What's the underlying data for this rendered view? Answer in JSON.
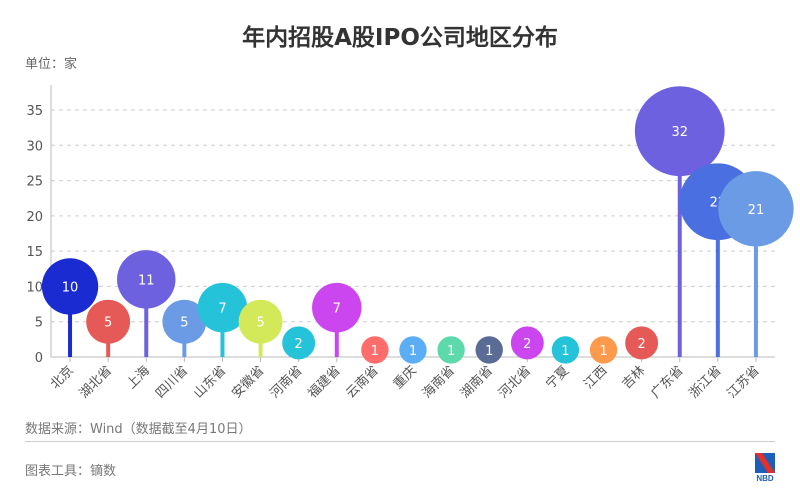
{
  "title": "年内招股A股IPO公司地区分布",
  "unit": "单位：家",
  "source": "数据来源：Wind（数据截至4月10日）",
  "tool": "图表工具：镝数",
  "logo_text": "NBD",
  "chart_data": {
    "type": "bubble-lollipop",
    "title": "年内招股A股IPO公司地区分布",
    "ylabel": "单位：家",
    "ylim": [
      0,
      35
    ],
    "yticks": [
      0,
      5,
      10,
      15,
      20,
      25,
      30,
      35
    ],
    "grid": true,
    "categories": [
      "北京",
      "湖北省",
      "上海",
      "四川省",
      "山东省",
      "安徽省",
      "河南省",
      "福建省",
      "云南省",
      "重庆",
      "海南省",
      "湖南省",
      "河北省",
      "宁夏",
      "江西",
      "吉林",
      "广东省",
      "浙江省",
      "江苏省"
    ],
    "values": [
      10,
      5,
      11,
      5,
      7,
      5,
      2,
      7,
      1,
      1,
      1,
      1,
      2,
      1,
      1,
      2,
      32,
      22,
      21
    ],
    "colors": [
      "#1a2bd1",
      "#e55a56",
      "#6e61e0",
      "#6c9be6",
      "#25c3da",
      "#d4e95a",
      "#25c3da",
      "#cc46f0",
      "#fe6d6c",
      "#5baef3",
      "#5dd9ab",
      "#5a6b95",
      "#cc46f0",
      "#25c3da",
      "#fe9a4d",
      "#e55a56",
      "#6e61e0",
      "#4a6fe0",
      "#6c9be6"
    ]
  }
}
